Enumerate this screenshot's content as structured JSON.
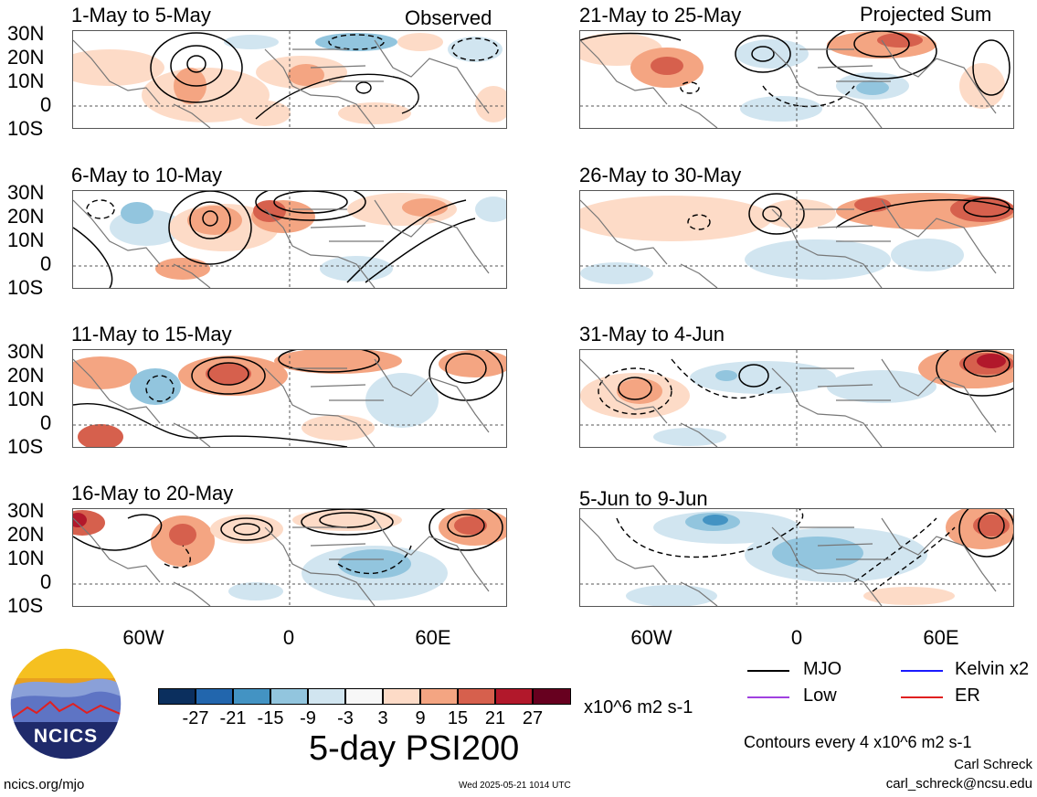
{
  "header": {
    "observed_label": "Observed",
    "projected_label": "Projected Sum"
  },
  "panels": [
    {
      "title": "1-May to 5-May"
    },
    {
      "title": "6-May to 10-May"
    },
    {
      "title": "11-May to 15-May"
    },
    {
      "title": "16-May to 20-May"
    },
    {
      "title": "21-May to 25-May"
    },
    {
      "title": "26-May to 30-May"
    },
    {
      "title": "31-May to 4-Jun"
    },
    {
      "title": "5-Jun to 9-Jun"
    }
  ],
  "axes": {
    "lat_labels": [
      "30N",
      "20N",
      "10N",
      "0",
      "10S"
    ],
    "lon_labels": [
      "60W",
      "0",
      "60E"
    ]
  },
  "colorbar": {
    "ticks": [
      "-27",
      "-21",
      "-15",
      "-9",
      "-3",
      "3",
      "9",
      "15",
      "21",
      "27"
    ],
    "colors": [
      "#0b2f5e",
      "#2266ad",
      "#4393c3",
      "#92c5de",
      "#d1e5f0",
      "#f7f7f7",
      "#fddbc7",
      "#f4a582",
      "#d6604d",
      "#b2182b",
      "#67001f"
    ],
    "units": "x10^6 m2 s-1"
  },
  "main_title": "5-day PSI200",
  "legend": {
    "items": [
      {
        "label": "MJO",
        "color": "#000000"
      },
      {
        "label": "Kelvin x2",
        "color": "#1a1aff"
      },
      {
        "label": "Low",
        "color": "#a040e0"
      },
      {
        "label": "ER",
        "color": "#e02020"
      }
    ],
    "contours_note": "Contours every 4 x10^6 m2 s-1"
  },
  "footer": {
    "author": "Carl Schreck",
    "email": "carl_schreck@ncsu.edu",
    "url": "ncics.org/mjo",
    "timestamp": "Wed 2025-05-21 1014 UTC",
    "logo_text": "NCICS"
  }
}
